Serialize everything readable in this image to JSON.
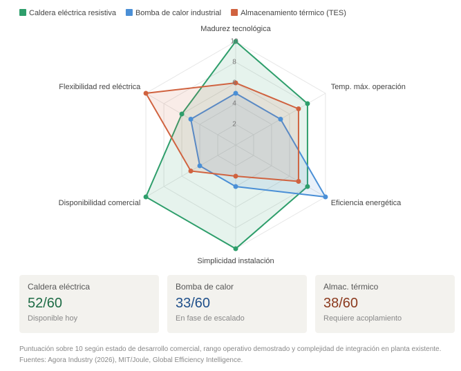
{
  "chart_data": {
    "type": "radar",
    "categories": [
      "Madurez tecnológica",
      "Temp. máx. operación",
      "Eficiencia energética",
      "Simplicidad instalación",
      "Disponibilidad comercial",
      "Flexibilidad red eléctrica"
    ],
    "series": [
      {
        "name": "Caldera eléctrica resistiva",
        "color": "#2e9e6b",
        "values": [
          10,
          8,
          8,
          10,
          10,
          6
        ]
      },
      {
        "name": "Bomba de calor industrial",
        "color": "#4a8fd6",
        "values": [
          5,
          5,
          10,
          4,
          4,
          5
        ]
      },
      {
        "name": "Almacenamiento térmico (TES)",
        "color": "#d0623f",
        "values": [
          6,
          7,
          7,
          3,
          5,
          10
        ]
      }
    ],
    "rlim": [
      0,
      10
    ],
    "rticks": [
      2,
      4,
      6,
      8,
      10
    ],
    "grid": true,
    "legend": "top"
  },
  "cards": [
    {
      "title": "Caldera eléctrica",
      "score": "52/60",
      "note": "Disponible hoy",
      "color": "#1d6b45"
    },
    {
      "title": "Bomba de calor",
      "score": "33/60",
      "note": "En fase de escalado",
      "color": "#1f4f8a"
    },
    {
      "title": "Almac. térmico",
      "score": "38/60",
      "note": "Requiere acoplamiento",
      "color": "#8b3a1e"
    }
  ],
  "footnote": "Puntuación sobre 10 según estado de desarrollo comercial, rango operativo demostrado y complejidad de integración en planta existente. Fuentes: Agora Industry (2026), MIT/Joule, Global Efficiency Intelligence."
}
